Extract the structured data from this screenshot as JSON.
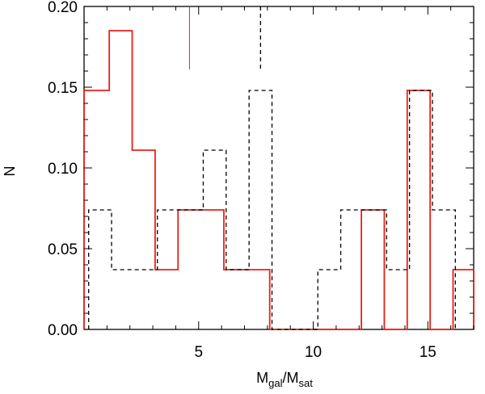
{
  "chart_data": {
    "type": "step-histogram",
    "title": "",
    "xlabel": "M",
    "xlabel_sub1": "gal",
    "xlabel_slash": "/M",
    "xlabel_sub2": "sat",
    "ylabel": "N",
    "xlim": [
      0,
      17
    ],
    "ylim": [
      0,
      0.2
    ],
    "xticks": [
      5,
      10,
      15
    ],
    "xtick_labels": [
      "5",
      "10",
      "15"
    ],
    "yticks": [
      0.0,
      0.05,
      0.1,
      0.15,
      0.2
    ],
    "ytick_labels": [
      "0.00",
      "0.05",
      "0.10",
      "0.15",
      "0.20"
    ],
    "grid": false,
    "series": [
      {
        "style": "solid",
        "color": "#e8201a",
        "edges": [
          0.0,
          1.1,
          2.1,
          3.1,
          4.1,
          5.1,
          6.1,
          7.1,
          8.1,
          12.1,
          13.1,
          14.1,
          15.1,
          16.1,
          17.0
        ],
        "values": [
          0.148,
          0.185,
          0.111,
          0.037,
          0.074,
          0.074,
          0.037,
          0.037,
          0.0,
          0.074,
          0.0,
          0.148,
          0.0,
          0.037
        ]
      },
      {
        "style": "dashed",
        "color": "#000000",
        "edges": [
          0.2,
          1.2,
          2.2,
          3.2,
          4.2,
          5.2,
          6.2,
          7.2,
          8.2,
          10.2,
          11.2,
          12.2,
          13.2,
          14.2,
          15.2,
          16.2
        ],
        "values": [
          0.074,
          0.037,
          0.037,
          0.074,
          0.074,
          0.111,
          0.037,
          0.148,
          0.0,
          0.037,
          0.074,
          0.074,
          0.037,
          0.148,
          0.074
        ]
      }
    ],
    "markers": [
      {
        "x": 4.6,
        "y_from": 0.161,
        "y_to": 0.2,
        "color": "#e8201a",
        "style": "solid"
      },
      {
        "x": 7.7,
        "y_from": 0.161,
        "y_to": 0.2,
        "color": "#000000",
        "style": "dashed"
      }
    ]
  }
}
